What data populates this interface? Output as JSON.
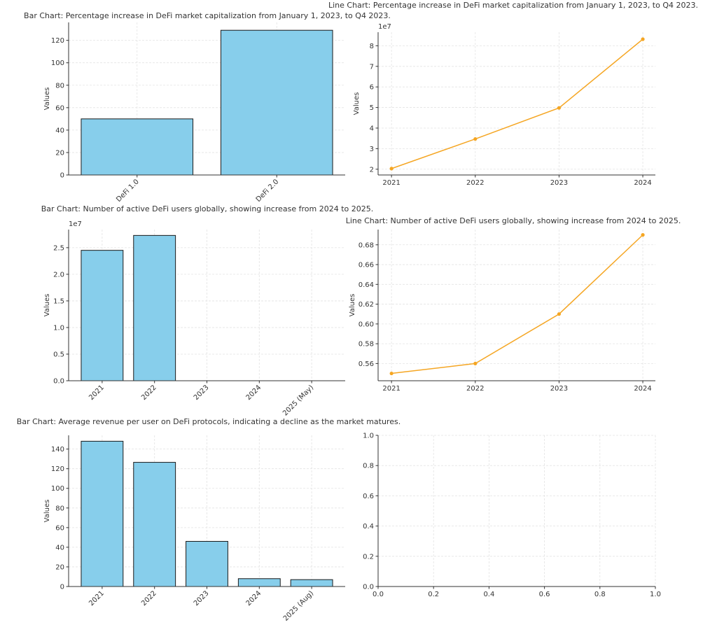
{
  "colors": {
    "bar": "#87CEEB",
    "bar_edge": "#1a1a1a",
    "line": "#F5A623",
    "grid": "#e3e3e3"
  },
  "chart_data": [
    {
      "type": "bar",
      "title": "Bar Chart: Percentage increase in DeFi market capitalization from January 1, 2023, to Q4 2023.",
      "ylabel": "Values",
      "xlabel": "",
      "categories": [
        "DeFi 1.0",
        "DeFi 2.0"
      ],
      "values": [
        50,
        129
      ],
      "ylim": [
        0,
        136
      ],
      "yticks": [
        0,
        20,
        40,
        60,
        80,
        100,
        120
      ],
      "ytick_labels": [
        "0",
        "20",
        "40",
        "60",
        "80",
        "100",
        "120"
      ],
      "offset_label": "",
      "xtick_rotation": 45,
      "grid": true
    },
    {
      "type": "line",
      "title": "Line Chart: Percentage increase in DeFi market capitalization from January 1, 2023, to Q4 2023.",
      "ylabel": "Values",
      "xlabel": "",
      "x": [
        2021,
        2022,
        2023,
        2024
      ],
      "values": [
        20300000,
        34700000,
        49800000,
        83200000
      ],
      "xlim": [
        2020.84,
        2024.15
      ],
      "ylim": [
        17200000,
        86600000
      ],
      "xticks": [
        2021,
        2022,
        2023,
        2024
      ],
      "xtick_labels": [
        "2021",
        "2022",
        "2023",
        "2024"
      ],
      "yticks": [
        20000000,
        30000000,
        40000000,
        50000000,
        60000000,
        70000000,
        80000000
      ],
      "ytick_labels": [
        "2",
        "3",
        "4",
        "5",
        "6",
        "7",
        "8"
      ],
      "offset_label": "1e7",
      "marker": "circle",
      "grid": true
    },
    {
      "type": "bar",
      "title": "Bar Chart: Number of active DeFi users globally, showing increase from 2024 to 2025.",
      "ylabel": "Values",
      "xlabel": "",
      "categories": [
        "2021",
        "2022",
        "2023",
        "2024",
        "2025 (May)"
      ],
      "values": [
        24500000,
        27300000,
        0,
        0,
        0
      ],
      "ylim": [
        0,
        28400000
      ],
      "yticks": [
        0,
        5000000,
        10000000,
        15000000,
        20000000,
        25000000
      ],
      "ytick_labels": [
        "0.0",
        "0.5",
        "1.0",
        "1.5",
        "2.0",
        "2.5"
      ],
      "offset_label": "1e7",
      "xtick_rotation": 45,
      "grid": true
    },
    {
      "type": "line",
      "title": "Line Chart: Number of active DeFi users globally, showing increase from 2024 to 2025.",
      "ylabel": "Values",
      "xlabel": "",
      "x": [
        2021,
        2022,
        2023,
        2024
      ],
      "values": [
        0.55,
        0.56,
        0.61,
        0.69
      ],
      "xlim": [
        2020.84,
        2024.15
      ],
      "ylim": [
        0.5426,
        0.6954
      ],
      "xticks": [
        2021,
        2022,
        2023,
        2024
      ],
      "xtick_labels": [
        "2021",
        "2022",
        "2023",
        "2024"
      ],
      "yticks": [
        0.56,
        0.58,
        0.6,
        0.62,
        0.64,
        0.66,
        0.68
      ],
      "ytick_labels": [
        "0.56",
        "0.58",
        "0.60",
        "0.62",
        "0.64",
        "0.66",
        "0.68"
      ],
      "offset_label": "",
      "marker": "circle",
      "grid": true
    },
    {
      "type": "bar",
      "title": "Bar Chart: Average revenue per user on DeFi protocols, indicating a decline as the market matures.",
      "ylabel": "Values",
      "xlabel": "",
      "categories": [
        "2021",
        "2022",
        "2023",
        "2024",
        "2025 (Aug)"
      ],
      "values": [
        148,
        126.5,
        46,
        8,
        7
      ],
      "ylim": [
        0,
        154
      ],
      "yticks": [
        0,
        20,
        40,
        60,
        80,
        100,
        120,
        140
      ],
      "ytick_labels": [
        "0",
        "20",
        "40",
        "60",
        "80",
        "100",
        "120",
        "140"
      ],
      "offset_label": "",
      "xtick_rotation": 45,
      "grid": true
    },
    {
      "type": "empty",
      "title": "",
      "xlim": [
        0,
        1
      ],
      "ylim": [
        0,
        1
      ],
      "xticks": [
        0,
        0.2,
        0.4,
        0.6,
        0.8,
        1.0
      ],
      "xtick_labels": [
        "0.0",
        "0.2",
        "0.4",
        "0.6",
        "0.8",
        "1.0"
      ],
      "yticks": [
        0,
        0.2,
        0.4,
        0.6,
        0.8,
        1.0
      ],
      "ytick_labels": [
        "0.0",
        "0.2",
        "0.4",
        "0.6",
        "0.8",
        "1.0"
      ],
      "grid": true
    }
  ]
}
